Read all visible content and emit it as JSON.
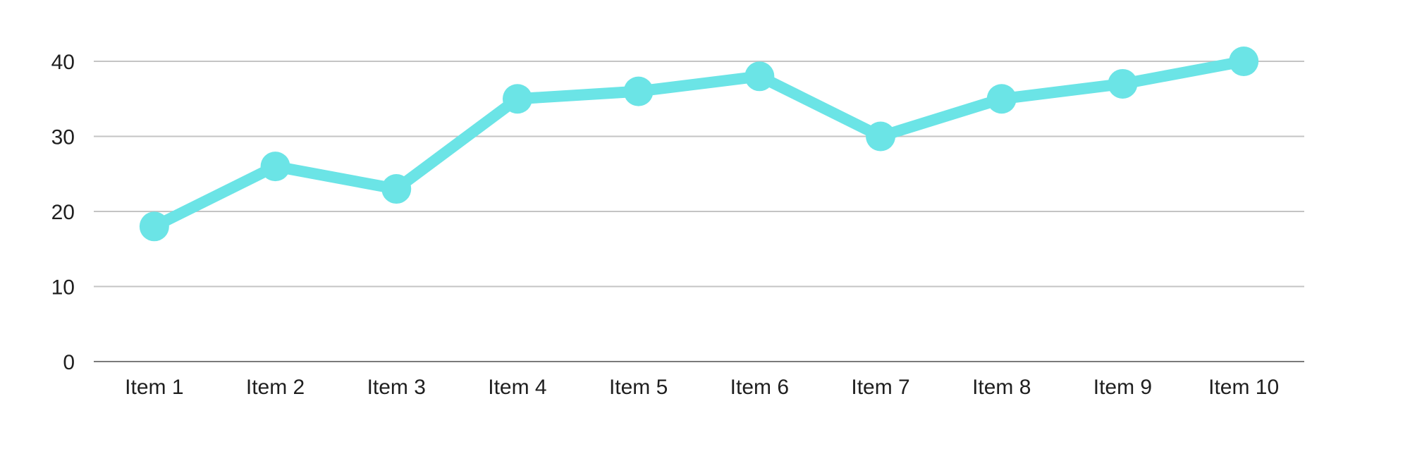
{
  "chart_data": {
    "type": "line",
    "title": "",
    "xlabel": "",
    "ylabel": "",
    "categories": [
      "Item 1",
      "Item 2",
      "Item 3",
      "Item 4",
      "Item 5",
      "Item 6",
      "Item 7",
      "Item 8",
      "Item 9",
      "Item 10"
    ],
    "series": [
      {
        "values": [
          18,
          26,
          23,
          35,
          36,
          38,
          30,
          35,
          37,
          40
        ],
        "color": "#6be4e6"
      }
    ],
    "ylim": [
      0,
      40
    ],
    "yticks": [
      "0",
      "10",
      "20",
      "30",
      "40"
    ],
    "grid": true,
    "legend": "none",
    "colors": {
      "grid": "#c4c4c4",
      "axis": "#7a7a7a"
    }
  }
}
